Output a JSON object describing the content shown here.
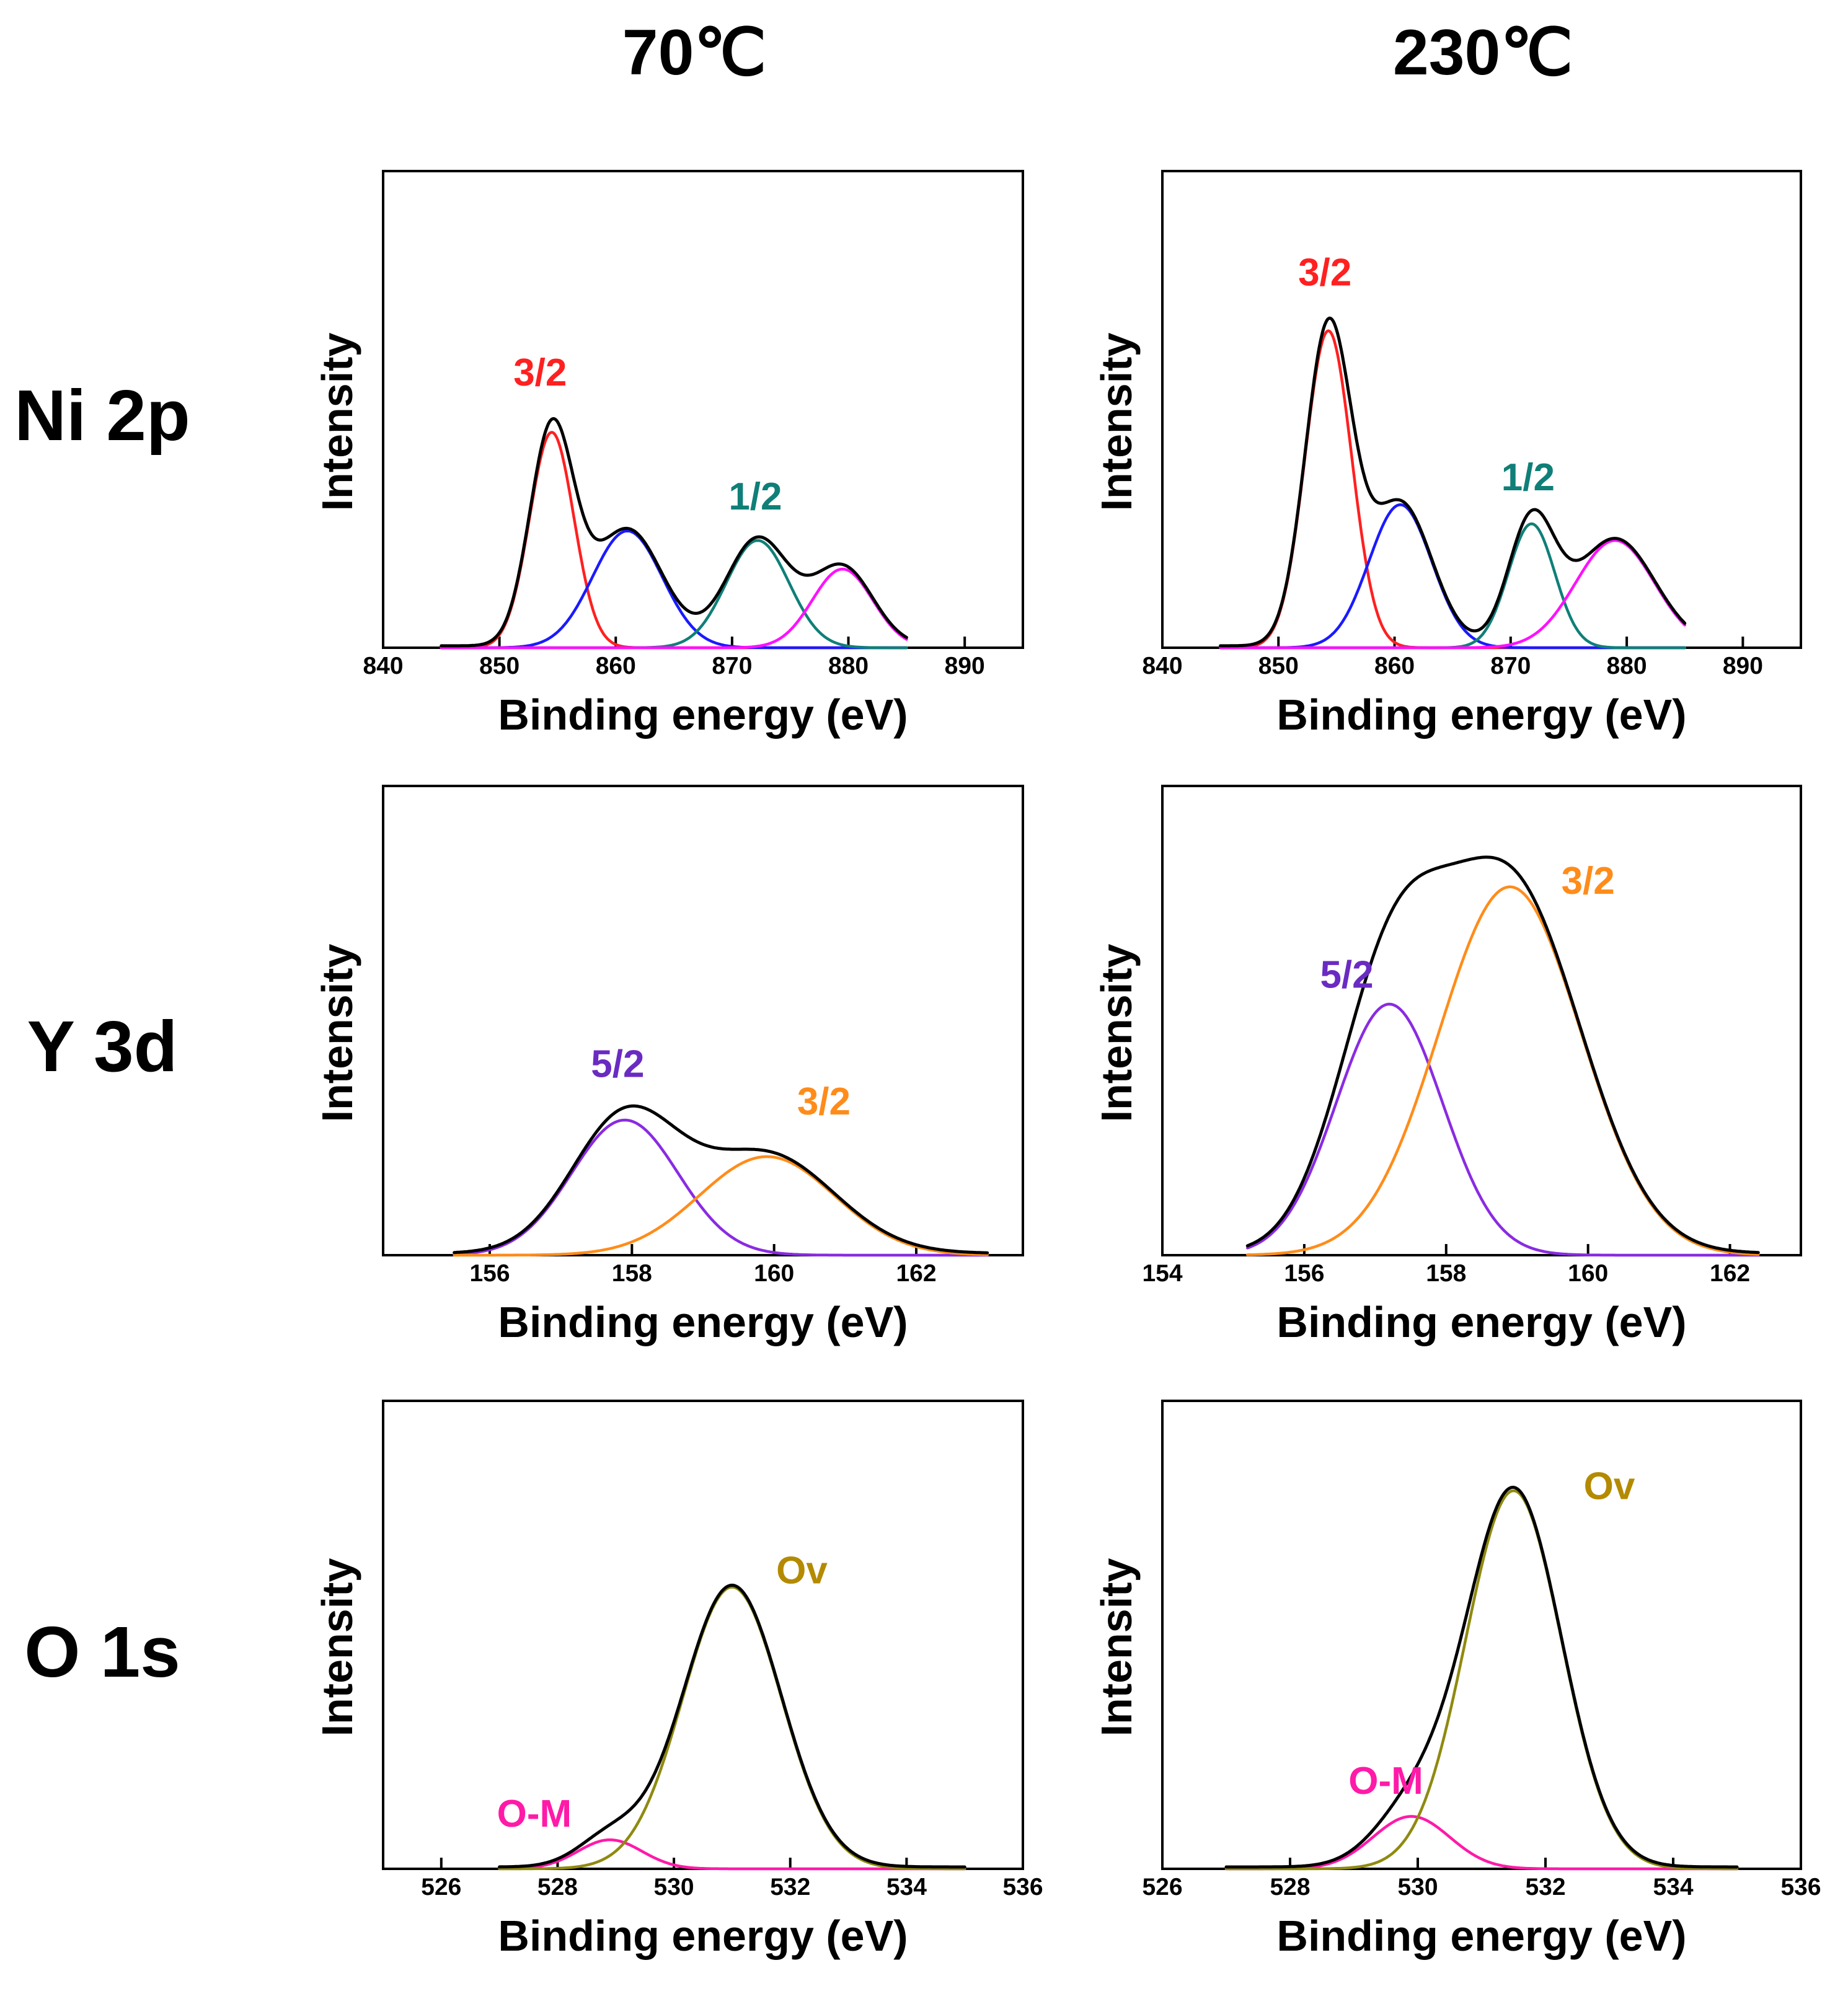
{
  "figure": {
    "column_titles": [
      "70℃",
      "230℃"
    ],
    "row_titles": [
      "Ni 2p",
      "Y 3d",
      "O 1s"
    ]
  },
  "colors": {
    "envelope": "#000000",
    "ni_3_2": "#ff2020",
    "ni_sat_blue": "#1a1aff",
    "ni_1_2": "#0f7f78",
    "ni_sat_magenta": "#ff10ff",
    "y_5_2_curve": "#8a2be2",
    "y_5_2_label": "#6a2bc2",
    "y_3_2": "#ff8c1a",
    "o_m": "#ff1aa8",
    "o_v": "#8f8a10",
    "o_v_label": "#b48a00"
  },
  "chart_data": [
    {
      "id": "ni-70",
      "type": "line",
      "row": 0,
      "col": 0,
      "title": "",
      "xlabel": "Binding energy (eV)",
      "ylabel": "Intensity",
      "xlim": [
        840,
        895
      ],
      "ylim": [
        0,
        1
      ],
      "xticks": [
        840,
        850,
        860,
        870,
        880,
        890
      ],
      "x_range": [
        845,
        885
      ],
      "components": [
        {
          "name": "3/2",
          "color_key": "ni_3_2",
          "center": 854.5,
          "sigma": 1.9,
          "amplitude": 0.452
        },
        {
          "name": "",
          "color_key": "ni_sat_blue",
          "center": 861.0,
          "sigma": 3.0,
          "amplitude": 0.245
        },
        {
          "name": "1/2",
          "color_key": "ni_1_2",
          "center": 872.2,
          "sigma": 2.7,
          "amplitude": 0.225
        },
        {
          "name": "",
          "color_key": "ni_sat_magenta",
          "center": 879.5,
          "sigma": 2.6,
          "amplitude": 0.165
        }
      ],
      "labels": [
        {
          "text": "3/2",
          "color_key": "ni_3_2",
          "x": 853.5,
          "y": 0.55
        },
        {
          "text": "1/2",
          "color_key": "ni_1_2",
          "x": 872.0,
          "y": 0.29
        }
      ]
    },
    {
      "id": "ni-230",
      "type": "line",
      "row": 0,
      "col": 1,
      "title": "",
      "xlabel": "Binding energy (eV)",
      "ylabel": "Intensity",
      "xlim": [
        840,
        895
      ],
      "ylim": [
        0,
        1
      ],
      "xticks": [
        840,
        850,
        860,
        870,
        880,
        890
      ],
      "x_range": [
        845,
        885
      ],
      "components": [
        {
          "name": "3/2",
          "color_key": "ni_3_2",
          "center": 854.3,
          "sigma": 2.0,
          "amplitude": 0.665
        },
        {
          "name": "",
          "color_key": "ni_sat_blue",
          "center": 860.5,
          "sigma": 2.7,
          "amplitude": 0.3
        },
        {
          "name": "1/2",
          "color_key": "ni_1_2",
          "center": 871.8,
          "sigma": 2.0,
          "amplitude": 0.26
        },
        {
          "name": "",
          "color_key": "ni_sat_magenta",
          "center": 879.0,
          "sigma": 3.4,
          "amplitude": 0.225
        }
      ],
      "labels": [
        {
          "text": "3/2",
          "color_key": "ni_3_2",
          "x": 854.0,
          "y": 0.76
        },
        {
          "text": "1/2",
          "color_key": "ni_1_2",
          "x": 871.5,
          "y": 0.33
        }
      ]
    },
    {
      "id": "y-70",
      "type": "line",
      "row": 1,
      "col": 0,
      "title": "",
      "xlabel": "Binding energy (eV)",
      "ylabel": "Intensity",
      "xlim": [
        154.5,
        163.5
      ],
      "ylim": [
        0,
        1
      ],
      "xticks": [
        156,
        158,
        160,
        162
      ],
      "x_range": [
        155.5,
        163.0
      ],
      "components": [
        {
          "name": "5/2",
          "color_key": "y_5_2_curve",
          "center": 157.9,
          "sigma": 0.75,
          "amplitude": 0.288
        },
        {
          "name": "3/2",
          "color_key": "y_3_2",
          "center": 159.9,
          "sigma": 0.95,
          "amplitude": 0.21
        }
      ],
      "labels": [
        {
          "text": "5/2",
          "color_key": "y_5_2_label",
          "x": 157.8,
          "y": 0.38
        },
        {
          "text": "3/2",
          "color_key": "y_3_2",
          "x": 160.7,
          "y": 0.3
        }
      ]
    },
    {
      "id": "y-230",
      "type": "line",
      "row": 1,
      "col": 1,
      "title": "",
      "xlabel": "Binding energy (eV)",
      "ylabel": "Intensity",
      "xlim": [
        154,
        163
      ],
      "ylim": [
        0,
        1
      ],
      "xticks": [
        154,
        156,
        158,
        160,
        162
      ],
      "x_range": [
        155.2,
        162.4
      ],
      "components": [
        {
          "name": "5/2",
          "color_key": "y_5_2_curve",
          "center": 157.2,
          "sigma": 0.75,
          "amplitude": 0.535
        },
        {
          "name": "3/2",
          "color_key": "y_3_2",
          "center": 158.9,
          "sigma": 1.0,
          "amplitude": 0.785
        }
      ],
      "labels": [
        {
          "text": "5/2",
          "color_key": "y_5_2_label",
          "x": 156.6,
          "y": 0.57
        },
        {
          "text": "3/2",
          "color_key": "y_3_2",
          "x": 160.0,
          "y": 0.77
        }
      ]
    },
    {
      "id": "o-70",
      "type": "line",
      "row": 2,
      "col": 0,
      "title": "",
      "xlabel": "Binding energy (eV)",
      "ylabel": "Intensity",
      "xlim": [
        525,
        536
      ],
      "ylim": [
        0,
        1
      ],
      "xticks": [
        526,
        528,
        530,
        532,
        534,
        536
      ],
      "x_range": [
        527.0,
        535.0
      ],
      "components": [
        {
          "name": "O-M",
          "color_key": "o_m",
          "center": 528.9,
          "sigma": 0.55,
          "amplitude": 0.062
        },
        {
          "name": "Ov",
          "color_key": "o_v",
          "center": 531.0,
          "sigma": 0.85,
          "amplitude": 0.602
        }
      ],
      "labels": [
        {
          "text": "O-M",
          "color_key": "o_m",
          "x": 527.6,
          "y": 0.09
        },
        {
          "text": "Ov",
          "color_key": "o_v_label",
          "x": 532.2,
          "y": 0.61
        }
      ]
    },
    {
      "id": "o-230",
      "type": "line",
      "row": 2,
      "col": 1,
      "title": "",
      "xlabel": "Binding energy (eV)",
      "ylabel": "Intensity",
      "xlim": [
        526,
        536
      ],
      "ylim": [
        0,
        1
      ],
      "xticks": [
        526,
        528,
        530,
        532,
        534,
        536
      ],
      "x_range": [
        527.0,
        535.0
      ],
      "components": [
        {
          "name": "O-M",
          "color_key": "o_m",
          "center": 529.9,
          "sigma": 0.6,
          "amplitude": 0.112
        },
        {
          "name": "Ov",
          "color_key": "o_v",
          "center": 531.5,
          "sigma": 0.75,
          "amplitude": 0.808
        }
      ],
      "labels": [
        {
          "text": "O-M",
          "color_key": "o_m",
          "x": 529.5,
          "y": 0.16
        },
        {
          "text": "Ov",
          "color_key": "o_v_label",
          "x": 533.0,
          "y": 0.79
        }
      ]
    }
  ]
}
